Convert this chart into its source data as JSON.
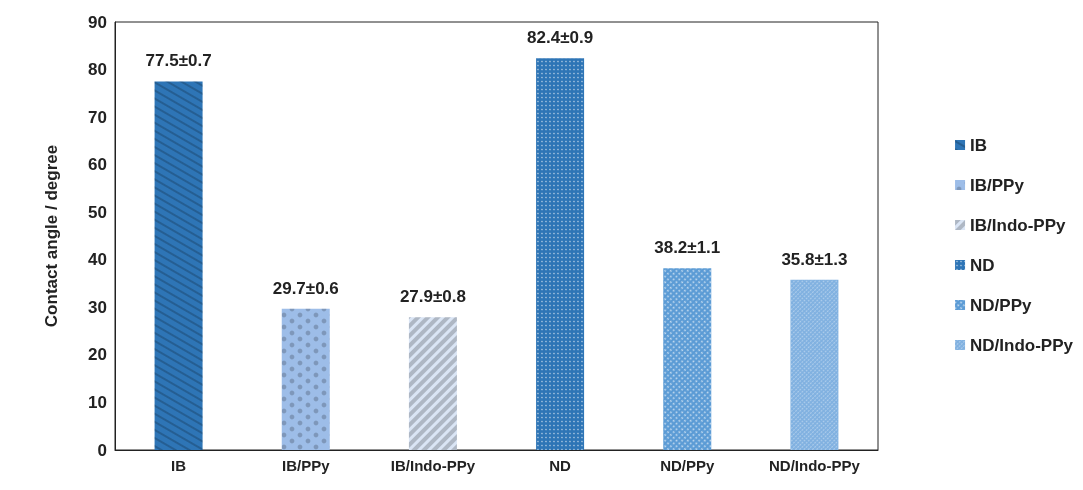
{
  "chart_data": {
    "type": "bar",
    "ylabel": "Contact angle / degree",
    "categories": [
      "IB",
      "IB/PPy",
      "IB/Indo-PPy",
      "ND",
      "ND/PPy",
      "ND/Indo-PPy"
    ],
    "series": [
      {
        "name": "IB",
        "color": "#2e75b6",
        "values": [
          77.5,
          null,
          null,
          null,
          null,
          null
        ],
        "value_labels": [
          "77.5±0.7",
          null,
          null,
          null,
          null,
          null
        ]
      },
      {
        "name": "IB/PPy",
        "color": "#9dbde8",
        "values": [
          null,
          29.7,
          null,
          null,
          null,
          null
        ],
        "value_labels": [
          null,
          "29.7±0.6",
          null,
          null,
          null,
          null
        ]
      },
      {
        "name": "IB/Indo-PPy",
        "color": "#dae5f5",
        "values": [
          null,
          null,
          27.9,
          null,
          null,
          null
        ],
        "value_labels": [
          null,
          null,
          "27.9±0.8",
          null,
          null,
          null
        ]
      },
      {
        "name": "ND",
        "color": "#2e75b6",
        "values": [
          null,
          null,
          null,
          82.4,
          null,
          null
        ],
        "value_labels": [
          null,
          null,
          null,
          "82.4±0.9",
          null,
          null
        ]
      },
      {
        "name": "ND/PPy",
        "color": "#5b9bd5",
        "values": [
          null,
          null,
          null,
          null,
          38.2,
          null
        ],
        "value_labels": [
          null,
          null,
          null,
          null,
          "38.2±1.1",
          null
        ]
      },
      {
        "name": "ND/Indo-PPy",
        "color": "#7fb0e0",
        "values": [
          null,
          null,
          null,
          null,
          null,
          35.8
        ],
        "value_labels": [
          null,
          null,
          null,
          null,
          null,
          "35.8±1.3"
        ]
      }
    ],
    "ylim": [
      0,
      90
    ],
    "yticks": [
      0,
      10,
      20,
      30,
      40,
      50,
      60,
      70,
      80,
      90
    ],
    "grid": false,
    "legend": "right"
  }
}
